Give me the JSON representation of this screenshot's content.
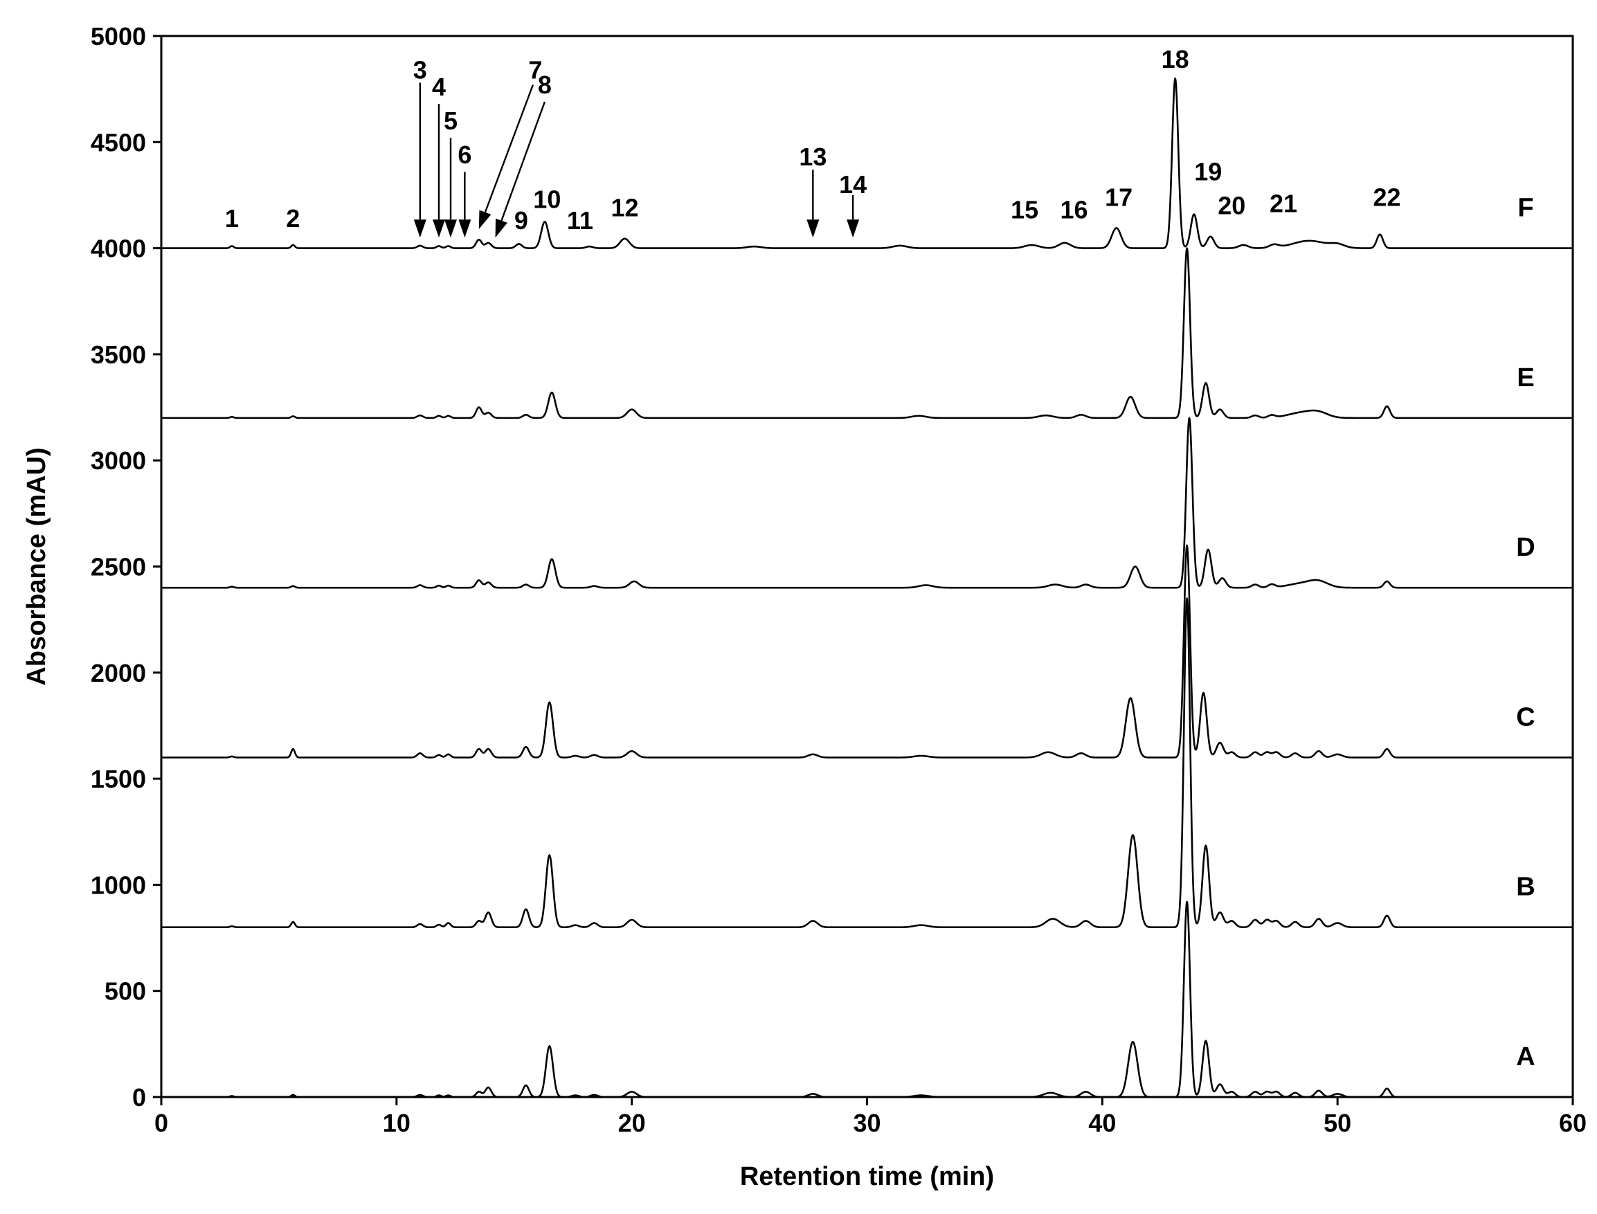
{
  "chart_data": {
    "type": "line",
    "title": "",
    "xlabel": "Retention time (min)",
    "ylabel": "Absorbance (mAU)",
    "xlim": [
      0,
      60
    ],
    "ylim": [
      0,
      5000
    ],
    "x_ticks": [
      0,
      10,
      20,
      30,
      40,
      50,
      60
    ],
    "y_ticks": [
      0,
      500,
      1000,
      1500,
      2000,
      2500,
      3000,
      3500,
      4000,
      4500,
      5000
    ],
    "grid": false,
    "legend": "none",
    "series": [
      {
        "name": "A",
        "baseline": 0,
        "peaks": [
          [
            3.0,
            5,
            0.08
          ],
          [
            5.6,
            10,
            0.08
          ],
          [
            11.0,
            10,
            0.12
          ],
          [
            11.8,
            8,
            0.1
          ],
          [
            12.2,
            8,
            0.1
          ],
          [
            13.5,
            25,
            0.12
          ],
          [
            13.9,
            45,
            0.13
          ],
          [
            15.5,
            55,
            0.13
          ],
          [
            16.5,
            240,
            0.15
          ],
          [
            17.6,
            8,
            0.15
          ],
          [
            18.4,
            10,
            0.15
          ],
          [
            20.0,
            25,
            0.2
          ],
          [
            27.7,
            15,
            0.2
          ],
          [
            32.3,
            8,
            0.3
          ],
          [
            37.8,
            20,
            0.3
          ],
          [
            39.3,
            25,
            0.2
          ],
          [
            41.3,
            260,
            0.2
          ],
          [
            43.6,
            920,
            0.13
          ],
          [
            44.4,
            265,
            0.14
          ],
          [
            45.0,
            60,
            0.15
          ],
          [
            45.5,
            25,
            0.15
          ],
          [
            46.5,
            25,
            0.15
          ],
          [
            47.0,
            25,
            0.15
          ],
          [
            47.4,
            25,
            0.15
          ],
          [
            48.2,
            20,
            0.15
          ],
          [
            49.2,
            30,
            0.15
          ],
          [
            50.0,
            15,
            0.2
          ],
          [
            52.1,
            40,
            0.13
          ]
        ]
      },
      {
        "name": "B",
        "baseline": 800,
        "peaks": [
          [
            3.0,
            5,
            0.08
          ],
          [
            5.6,
            25,
            0.08
          ],
          [
            11.0,
            15,
            0.12
          ],
          [
            11.8,
            12,
            0.1
          ],
          [
            12.2,
            20,
            0.1
          ],
          [
            13.5,
            30,
            0.12
          ],
          [
            13.9,
            70,
            0.13
          ],
          [
            15.5,
            85,
            0.13
          ],
          [
            16.5,
            340,
            0.15
          ],
          [
            17.6,
            10,
            0.15
          ],
          [
            18.4,
            20,
            0.15
          ],
          [
            20.0,
            35,
            0.2
          ],
          [
            27.7,
            30,
            0.2
          ],
          [
            32.3,
            10,
            0.3
          ],
          [
            37.9,
            40,
            0.3
          ],
          [
            39.3,
            30,
            0.2
          ],
          [
            41.3,
            435,
            0.2
          ],
          [
            43.6,
            1550,
            0.13
          ],
          [
            44.4,
            385,
            0.14
          ],
          [
            45.0,
            70,
            0.15
          ],
          [
            45.5,
            30,
            0.15
          ],
          [
            46.5,
            35,
            0.15
          ],
          [
            47.0,
            35,
            0.15
          ],
          [
            47.4,
            30,
            0.15
          ],
          [
            48.2,
            25,
            0.15
          ],
          [
            49.2,
            40,
            0.15
          ],
          [
            50.0,
            20,
            0.2
          ],
          [
            52.1,
            55,
            0.13
          ]
        ]
      },
      {
        "name": "C",
        "baseline": 1600,
        "peaks": [
          [
            3.0,
            5,
            0.08
          ],
          [
            5.6,
            40,
            0.08
          ],
          [
            11.0,
            20,
            0.12
          ],
          [
            11.8,
            12,
            0.1
          ],
          [
            12.2,
            15,
            0.1
          ],
          [
            13.5,
            40,
            0.12
          ],
          [
            13.9,
            40,
            0.13
          ],
          [
            15.5,
            50,
            0.13
          ],
          [
            16.5,
            260,
            0.15
          ],
          [
            17.6,
            8,
            0.15
          ],
          [
            18.4,
            12,
            0.15
          ],
          [
            20.0,
            30,
            0.2
          ],
          [
            27.7,
            15,
            0.2
          ],
          [
            32.3,
            8,
            0.3
          ],
          [
            37.7,
            25,
            0.3
          ],
          [
            39.1,
            20,
            0.2
          ],
          [
            41.2,
            280,
            0.2
          ],
          [
            43.6,
            1000,
            0.13
          ],
          [
            44.3,
            305,
            0.14
          ],
          [
            45.0,
            70,
            0.15
          ],
          [
            45.5,
            25,
            0.15
          ],
          [
            46.5,
            25,
            0.15
          ],
          [
            47.0,
            25,
            0.15
          ],
          [
            47.4,
            25,
            0.15
          ],
          [
            48.2,
            20,
            0.15
          ],
          [
            49.2,
            30,
            0.15
          ],
          [
            50.0,
            15,
            0.2
          ],
          [
            52.1,
            40,
            0.13
          ]
        ]
      },
      {
        "name": "D",
        "baseline": 2400,
        "peaks": [
          [
            3.0,
            5,
            0.08
          ],
          [
            5.6,
            8,
            0.08
          ],
          [
            11.0,
            12,
            0.12
          ],
          [
            11.8,
            10,
            0.1
          ],
          [
            12.2,
            10,
            0.1
          ],
          [
            13.5,
            35,
            0.12
          ],
          [
            13.9,
            25,
            0.13
          ],
          [
            15.5,
            15,
            0.13
          ],
          [
            16.6,
            135,
            0.15
          ],
          [
            18.4,
            8,
            0.15
          ],
          [
            20.1,
            30,
            0.2
          ],
          [
            32.5,
            12,
            0.3
          ],
          [
            38.0,
            15,
            0.3
          ],
          [
            39.3,
            15,
            0.2
          ],
          [
            41.4,
            100,
            0.2
          ],
          [
            43.7,
            800,
            0.13
          ],
          [
            44.5,
            180,
            0.14
          ],
          [
            45.1,
            45,
            0.15
          ],
          [
            46.5,
            15,
            0.15
          ],
          [
            47.2,
            15,
            0.15
          ],
          [
            48.5,
            20,
            0.6
          ],
          [
            49.2,
            25,
            0.4
          ],
          [
            52.1,
            30,
            0.13
          ]
        ]
      },
      {
        "name": "E",
        "baseline": 3200,
        "peaks": [
          [
            3.0,
            5,
            0.08
          ],
          [
            5.6,
            8,
            0.08
          ],
          [
            11.0,
            12,
            0.12
          ],
          [
            11.8,
            10,
            0.1
          ],
          [
            12.2,
            10,
            0.1
          ],
          [
            13.5,
            50,
            0.12
          ],
          [
            13.9,
            25,
            0.13
          ],
          [
            15.5,
            15,
            0.13
          ],
          [
            16.6,
            120,
            0.15
          ],
          [
            20.0,
            40,
            0.2
          ],
          [
            32.2,
            10,
            0.3
          ],
          [
            37.6,
            12,
            0.3
          ],
          [
            39.1,
            15,
            0.2
          ],
          [
            41.2,
            100,
            0.2
          ],
          [
            43.6,
            800,
            0.13
          ],
          [
            44.4,
            165,
            0.14
          ],
          [
            45.0,
            40,
            0.15
          ],
          [
            46.5,
            12,
            0.15
          ],
          [
            47.2,
            12,
            0.15
          ],
          [
            48.5,
            25,
            0.6
          ],
          [
            49.2,
            20,
            0.4
          ],
          [
            52.1,
            55,
            0.13
          ]
        ]
      },
      {
        "name": "F",
        "baseline": 4000,
        "peaks": [
          [
            3.0,
            10,
            0.08
          ],
          [
            5.6,
            15,
            0.08
          ],
          [
            11.0,
            12,
            0.12
          ],
          [
            11.8,
            10,
            0.1
          ],
          [
            12.2,
            10,
            0.1
          ],
          [
            13.5,
            40,
            0.12
          ],
          [
            13.9,
            25,
            0.13
          ],
          [
            15.2,
            20,
            0.13
          ],
          [
            16.3,
            125,
            0.15
          ],
          [
            18.2,
            8,
            0.15
          ],
          [
            19.7,
            45,
            0.2
          ],
          [
            25.2,
            8,
            0.3
          ],
          [
            31.4,
            12,
            0.3
          ],
          [
            37.0,
            15,
            0.3
          ],
          [
            38.4,
            25,
            0.25
          ],
          [
            40.6,
            95,
            0.2
          ],
          [
            43.1,
            800,
            0.13
          ],
          [
            43.9,
            160,
            0.14
          ],
          [
            44.6,
            55,
            0.15
          ],
          [
            46.0,
            15,
            0.2
          ],
          [
            47.3,
            15,
            0.2
          ],
          [
            48.8,
            35,
            0.7
          ],
          [
            50.0,
            15,
            0.3
          ],
          [
            51.8,
            65,
            0.13
          ]
        ]
      }
    ],
    "peak_labels": [
      {
        "text": "1",
        "x": 3.0,
        "y": 4100
      },
      {
        "text": "2",
        "x": 5.6,
        "y": 4100
      },
      {
        "text": "3",
        "x": 11.0,
        "y": 4800
      },
      {
        "text": "4",
        "x": 11.8,
        "y": 4720
      },
      {
        "text": "5",
        "x": 12.3,
        "y": 4560
      },
      {
        "text": "6",
        "x": 12.9,
        "y": 4400
      },
      {
        "text": "7",
        "x": 15.9,
        "y": 4800
      },
      {
        "text": "8",
        "x": 16.3,
        "y": 4730
      },
      {
        "text": "9",
        "x": 15.3,
        "y": 4090
      },
      {
        "text": "10",
        "x": 16.4,
        "y": 4190
      },
      {
        "text": "11",
        "x": 17.8,
        "y": 4090
      },
      {
        "text": "12",
        "x": 19.7,
        "y": 4150
      },
      {
        "text": "13",
        "x": 27.7,
        "y": 4390
      },
      {
        "text": "14",
        "x": 29.4,
        "y": 4260
      },
      {
        "text": "15",
        "x": 36.7,
        "y": 4140
      },
      {
        "text": "16",
        "x": 38.8,
        "y": 4140
      },
      {
        "text": "17",
        "x": 40.7,
        "y": 4200
      },
      {
        "text": "18",
        "x": 43.1,
        "y": 4850
      },
      {
        "text": "19",
        "x": 44.5,
        "y": 4320
      },
      {
        "text": "20",
        "x": 45.5,
        "y": 4160
      },
      {
        "text": "21",
        "x": 47.7,
        "y": 4170
      },
      {
        "text": "22",
        "x": 52.1,
        "y": 4200
      }
    ],
    "arrows": [
      {
        "x1": 11.0,
        "y1": 4780,
        "x2": 11.0,
        "y2": 4050
      },
      {
        "x1": 11.8,
        "y1": 4680,
        "x2": 11.8,
        "y2": 4050
      },
      {
        "x1": 12.3,
        "y1": 4520,
        "x2": 12.3,
        "y2": 4050
      },
      {
        "x1": 12.9,
        "y1": 4360,
        "x2": 12.9,
        "y2": 4050
      },
      {
        "x1": 15.8,
        "y1": 4770,
        "x2": 13.5,
        "y2": 4090
      },
      {
        "x1": 16.3,
        "y1": 4690,
        "x2": 14.2,
        "y2": 4050
      },
      {
        "x1": 27.7,
        "y1": 4370,
        "x2": 27.7,
        "y2": 4050
      },
      {
        "x1": 29.4,
        "y1": 4250,
        "x2": 29.4,
        "y2": 4050
      }
    ],
    "trace_label_x": 58.0
  }
}
